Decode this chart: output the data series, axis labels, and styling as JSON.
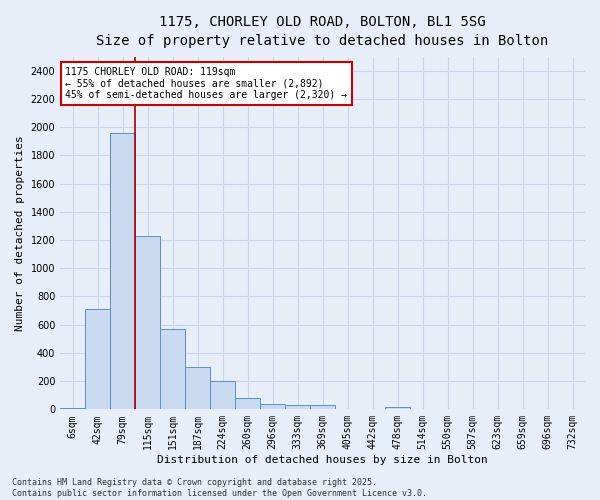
{
  "title_line1": "1175, CHORLEY OLD ROAD, BOLTON, BL1 5SG",
  "title_line2": "Size of property relative to detached houses in Bolton",
  "xlabel": "Distribution of detached houses by size in Bolton",
  "ylabel": "Number of detached properties",
  "categories": [
    "6sqm",
    "42sqm",
    "79sqm",
    "115sqm",
    "151sqm",
    "187sqm",
    "224sqm",
    "260sqm",
    "296sqm",
    "333sqm",
    "369sqm",
    "405sqm",
    "442sqm",
    "478sqm",
    "514sqm",
    "550sqm",
    "587sqm",
    "623sqm",
    "659sqm",
    "696sqm",
    "732sqm"
  ],
  "values": [
    10,
    710,
    1960,
    1230,
    570,
    300,
    200,
    80,
    40,
    30,
    30,
    0,
    0,
    20,
    0,
    0,
    0,
    0,
    0,
    0,
    0
  ],
  "bar_color": "#c8d9f0",
  "bar_edge_color": "#5b8ecf",
  "background_color": "#e8eef8",
  "grid_color": "#c8d4e8",
  "ylim": [
    0,
    2500
  ],
  "yticks": [
    0,
    200,
    400,
    600,
    800,
    1000,
    1200,
    1400,
    1600,
    1800,
    2000,
    2200,
    2400
  ],
  "annotation_text": "1175 CHORLEY OLD ROAD: 119sqm\n← 55% of detached houses are smaller (2,892)\n45% of semi-detached houses are larger (2,320) →",
  "property_bar_index": 2,
  "vline_color": "#aa0000",
  "annotation_box_color": "#ffffff",
  "annotation_border_color": "#cc0000",
  "copyright_text": "Contains HM Land Registry data © Crown copyright and database right 2025.\nContains public sector information licensed under the Open Government Licence v3.0.",
  "title_fontsize": 10,
  "subtitle_fontsize": 9,
  "axis_label_fontsize": 8,
  "tick_fontsize": 7,
  "annotation_fontsize": 7,
  "copyright_fontsize": 6
}
